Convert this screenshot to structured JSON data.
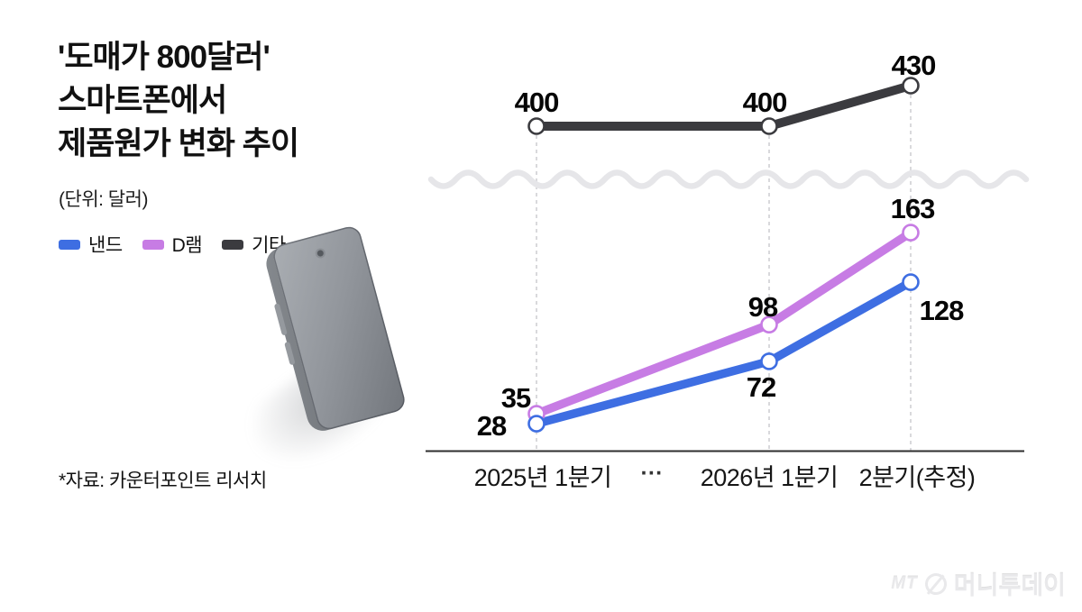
{
  "title": {
    "lines": [
      "'도매가 800달러'",
      "스마트폰에서",
      "제품원가 변화 추이"
    ]
  },
  "unit_note": "(단위: 달러)",
  "source_note": "*자료: 카운터포인트 리서치",
  "watermark": {
    "prefix": "MT",
    "brand": "머니투데이"
  },
  "chart_data": {
    "type": "line",
    "title": "도매가 800달러 스마트폰에서 제품원가 변화 추이",
    "ylabel": "달러",
    "categories": [
      "2025년 1분기",
      "2026년 1분기",
      "2분기(추정)"
    ],
    "x_gap_label": "···",
    "axis_break": true,
    "grid": "vertical-dashed",
    "legend_position": "top-left",
    "series": [
      {
        "key": "nand",
        "name": "낸드",
        "color": "#3e6ee2",
        "values": [
          28,
          72,
          128
        ]
      },
      {
        "key": "dram",
        "name": "D램",
        "color": "#c77ce4",
        "values": [
          35,
          98,
          163
        ]
      },
      {
        "key": "etc",
        "name": "기타",
        "color": "#3b3b3f",
        "values": [
          400,
          400,
          430
        ]
      }
    ]
  }
}
